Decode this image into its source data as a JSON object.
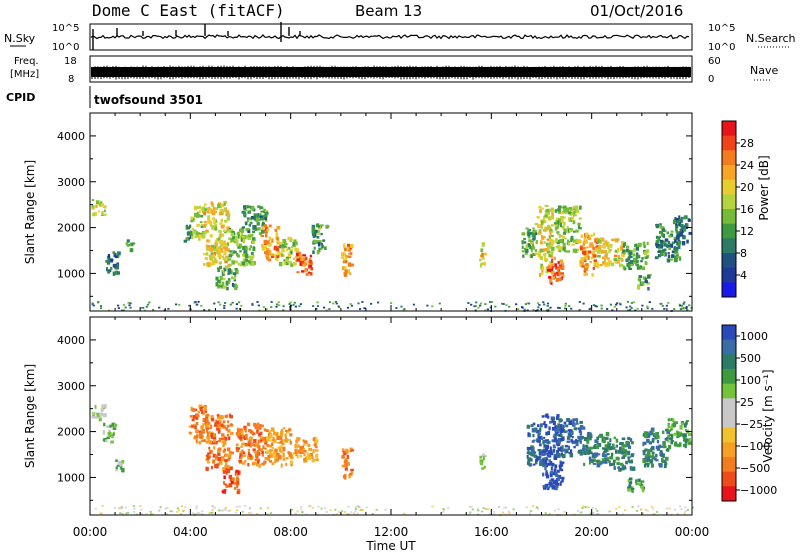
{
  "header": {
    "station": "Dome C East (fitACF)",
    "beam": "Beam 13",
    "date": "01/Oct/2016"
  },
  "noise_panel": {
    "left_label": "N.Sky",
    "left_ticks": [
      "10^5",
      "10^0"
    ],
    "right_ticks": [
      "10^5",
      "10^0"
    ],
    "right_label": "N.Search"
  },
  "freq_panel": {
    "left_label_1": "Freq.",
    "left_label_2": "[MHz]",
    "left_ticks": [
      "18",
      "8"
    ],
    "right_ticks": [
      "60",
      "0"
    ],
    "right_label": "Nave"
  },
  "cpid_panel": {
    "label": "CPID",
    "program": "twofsound  3501"
  },
  "chart_data": [
    {
      "type": "heatmap",
      "name": "power",
      "ylabel": "Slant Range [km]",
      "yticks": [
        "4000",
        "3000",
        "2000",
        "1000"
      ],
      "ytick_values": [
        4000,
        3000,
        2000,
        1000
      ],
      "ylim": [
        180,
        4500
      ],
      "xlim_hours": [
        0,
        24
      ],
      "colorbar_label": "Power [dB]",
      "colorbar_ticks": [
        "28",
        "24",
        "20",
        "16",
        "12",
        "8",
        "4"
      ],
      "colorbar_colors": [
        "#e8141b",
        "#f2421a",
        "#f57b1f",
        "#f6a526",
        "#e9cd2e",
        "#b5d33c",
        "#74bb3a",
        "#3e9a3e",
        "#2d7a66",
        "#1f5080",
        "#1c3a96",
        "#1a1ae6"
      ],
      "blobs": [
        {
          "t0": 0.05,
          "t1": 0.6,
          "r0": 2300,
          "r1": 2650,
          "v": 18
        },
        {
          "t0": 0.6,
          "t1": 1.1,
          "r0": 1000,
          "r1": 1500,
          "v": 8
        },
        {
          "t0": 1.4,
          "t1": 1.7,
          "r0": 1550,
          "r1": 1750,
          "v": 12
        },
        {
          "t0": 3.7,
          "t1": 4.0,
          "r0": 1700,
          "r1": 2100,
          "v": 10
        },
        {
          "t0": 4.0,
          "t1": 4.5,
          "r0": 1800,
          "r1": 2500,
          "v": 16
        },
        {
          "t0": 4.5,
          "t1": 5.5,
          "r0": 1200,
          "r1": 2600,
          "v": 20
        },
        {
          "t0": 5.0,
          "t1": 5.8,
          "r0": 700,
          "r1": 1200,
          "v": 12
        },
        {
          "t0": 5.5,
          "t1": 6.5,
          "r0": 1200,
          "r1": 2000,
          "v": 14
        },
        {
          "t0": 6.0,
          "t1": 7.0,
          "r0": 1900,
          "r1": 2500,
          "v": 12
        },
        {
          "t0": 6.8,
          "t1": 7.5,
          "r0": 1300,
          "r1": 2100,
          "v": 24
        },
        {
          "t0": 7.5,
          "t1": 8.2,
          "r0": 1200,
          "r1": 1800,
          "v": 16
        },
        {
          "t0": 8.2,
          "t1": 8.8,
          "r0": 1000,
          "r1": 1500,
          "v": 28
        },
        {
          "t0": 8.8,
          "t1": 9.4,
          "r0": 1500,
          "r1": 2100,
          "v": 12
        },
        {
          "t0": 10.0,
          "t1": 10.4,
          "r0": 1000,
          "r1": 1700,
          "v": 24
        },
        {
          "t0": 15.5,
          "t1": 15.7,
          "r0": 1200,
          "r1": 1700,
          "v": 20
        },
        {
          "t0": 17.2,
          "t1": 17.8,
          "r0": 1400,
          "r1": 2100,
          "v": 12
        },
        {
          "t0": 17.8,
          "t1": 18.4,
          "r0": 1000,
          "r1": 2500,
          "v": 20
        },
        {
          "t0": 18.2,
          "t1": 18.8,
          "r0": 800,
          "r1": 1400,
          "v": 28
        },
        {
          "t0": 18.5,
          "t1": 19.5,
          "r0": 1500,
          "r1": 2500,
          "v": 16
        },
        {
          "t0": 19.5,
          "t1": 20.2,
          "r0": 1000,
          "r1": 1900,
          "v": 24
        },
        {
          "t0": 20.2,
          "t1": 21.2,
          "r0": 1200,
          "r1": 1800,
          "v": 20
        },
        {
          "t0": 21.2,
          "t1": 22.2,
          "r0": 1100,
          "r1": 1700,
          "v": 12
        },
        {
          "t0": 21.8,
          "t1": 22.3,
          "r0": 700,
          "r1": 1000,
          "v": 12
        },
        {
          "t0": 22.5,
          "t1": 23.5,
          "r0": 1300,
          "r1": 2100,
          "v": 10
        },
        {
          "t0": 23.2,
          "t1": 23.9,
          "r0": 1700,
          "r1": 2300,
          "v": 8
        }
      ],
      "floor_band": {
        "r0": 200,
        "r1": 400,
        "v": 6
      }
    },
    {
      "type": "heatmap",
      "name": "velocity",
      "ylabel": "Slant Range [km]",
      "yticks": [
        "4000",
        "3000",
        "2000",
        "1000"
      ],
      "ytick_values": [
        4000,
        3000,
        2000,
        1000
      ],
      "ylim": [
        180,
        4500
      ],
      "xlim_hours": [
        0,
        24
      ],
      "xticks": [
        "00:00",
        "04:00",
        "08:00",
        "12:00",
        "16:00",
        "20:00",
        "00:00"
      ],
      "xtick_hours": [
        0,
        4,
        8,
        12,
        16,
        20,
        24
      ],
      "xlabel": "Time UT",
      "colorbar_label": "Velocity [m s⁻¹]",
      "colorbar_ticks": [
        "1000",
        "500",
        "100",
        "25",
        "−25",
        "−100",
        "−500",
        "−1000"
      ],
      "colorbar_colors": [
        "#2a49b8",
        "#3a6ca6",
        "#2d7a66",
        "#3e9a3e",
        "#74c43b",
        "#c8c8c8",
        "#c8c8c8",
        "#f2c12e",
        "#f5a024",
        "#f57b1f",
        "#ef4a1c",
        "#e8141b"
      ],
      "blobs": [
        {
          "t0": 0.05,
          "t1": 0.6,
          "r0": 2300,
          "r1": 2600,
          "v": 5
        },
        {
          "t0": 0.5,
          "t1": 1.0,
          "r0": 1800,
          "r1": 2200,
          "v": 4
        },
        {
          "t0": 1.0,
          "t1": 1.3,
          "r0": 1100,
          "r1": 1400,
          "v": 4
        },
        {
          "t0": 3.9,
          "t1": 4.6,
          "r0": 1800,
          "r1": 2600,
          "v": 9
        },
        {
          "t0": 4.6,
          "t1": 5.6,
          "r0": 1200,
          "r1": 2400,
          "v": 9
        },
        {
          "t0": 5.2,
          "t1": 5.9,
          "r0": 700,
          "r1": 1200,
          "v": 10
        },
        {
          "t0": 5.8,
          "t1": 7.0,
          "r0": 1300,
          "r1": 2200,
          "v": 9
        },
        {
          "t0": 7.0,
          "t1": 8.0,
          "r0": 1300,
          "r1": 2100,
          "v": 8
        },
        {
          "t0": 8.0,
          "t1": 9.0,
          "r0": 1400,
          "r1": 1900,
          "v": 8
        },
        {
          "t0": 10.0,
          "t1": 10.4,
          "r0": 1000,
          "r1": 1700,
          "v": 9
        },
        {
          "t0": 15.5,
          "t1": 15.7,
          "r0": 1200,
          "r1": 1600,
          "v": 4
        },
        {
          "t0": 17.4,
          "t1": 18.2,
          "r0": 1300,
          "r1": 2200,
          "v": 1
        },
        {
          "t0": 18.0,
          "t1": 18.8,
          "r0": 800,
          "r1": 2400,
          "v": 0
        },
        {
          "t0": 18.6,
          "t1": 19.6,
          "r0": 1500,
          "r1": 2300,
          "v": 1
        },
        {
          "t0": 19.6,
          "t1": 20.6,
          "r0": 1300,
          "r1": 2000,
          "v": 2
        },
        {
          "t0": 20.6,
          "t1": 21.6,
          "r0": 1200,
          "r1": 1900,
          "v": 2
        },
        {
          "t0": 21.4,
          "t1": 22.0,
          "r0": 700,
          "r1": 1000,
          "v": 3
        },
        {
          "t0": 22.0,
          "t1": 23.0,
          "r0": 1300,
          "r1": 2100,
          "v": 2
        },
        {
          "t0": 23.0,
          "t1": 23.9,
          "r0": 1700,
          "r1": 2300,
          "v": 3
        }
      ],
      "floor_band": {
        "r0": 200,
        "r1": 400,
        "v": 6
      }
    }
  ]
}
